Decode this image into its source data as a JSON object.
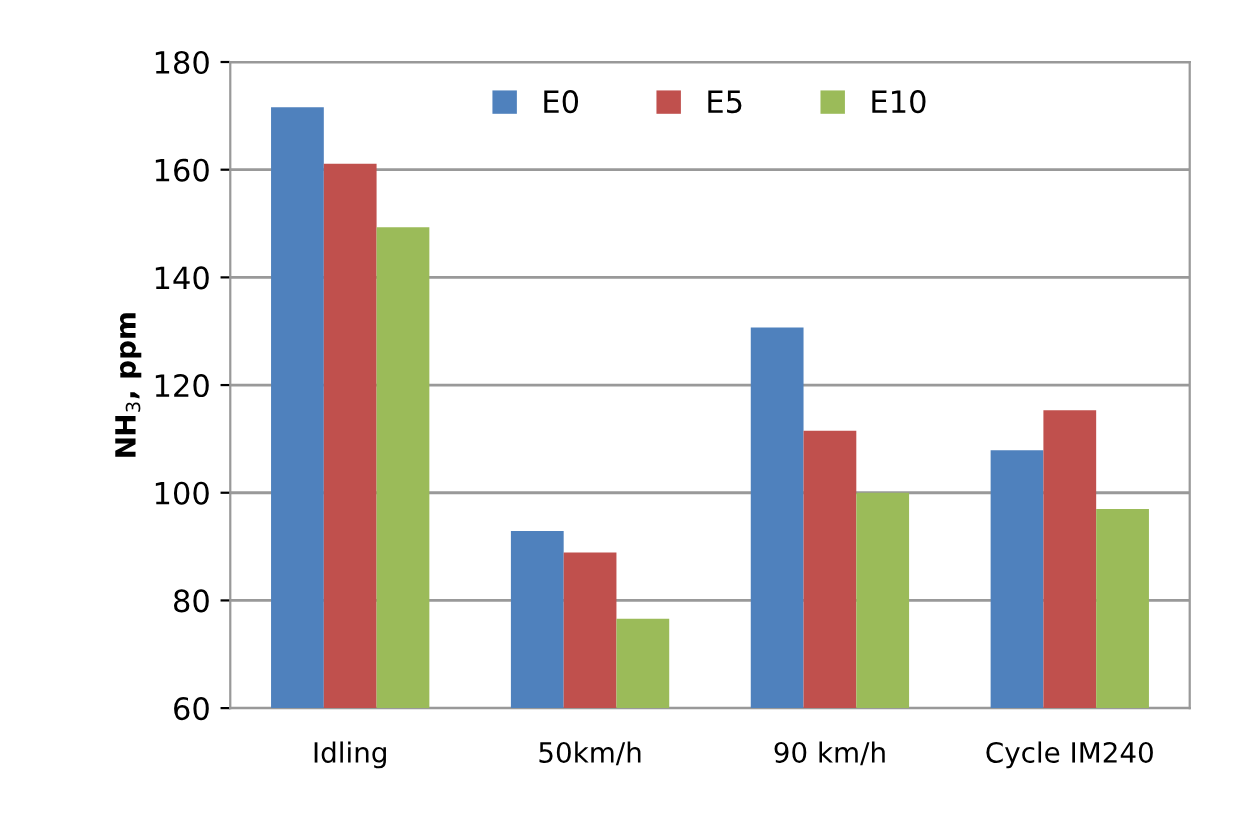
{
  "chart_data": {
    "type": "bar",
    "ylabel": "NH$_{3}$, ppm",
    "categories": [
      "Idling",
      "50km/h",
      "90 km/h",
      "Cycle IM240"
    ],
    "series": [
      {
        "name": "E0",
        "color": "#4f81bd",
        "values": [
          171.6,
          92.9,
          130.7,
          107.9
        ]
      },
      {
        "name": "E5",
        "color": "#c0504d",
        "values": [
          161.1,
          88.9,
          111.5,
          115.3
        ]
      },
      {
        "name": "E10",
        "color": "#9bbb59",
        "values": [
          149.3,
          76.6,
          100,
          97
        ]
      }
    ],
    "ylim": [
      60,
      180
    ],
    "yticks": [
      60,
      80,
      100,
      120,
      140,
      160,
      180
    ],
    "grid": "y",
    "legend": "top"
  }
}
